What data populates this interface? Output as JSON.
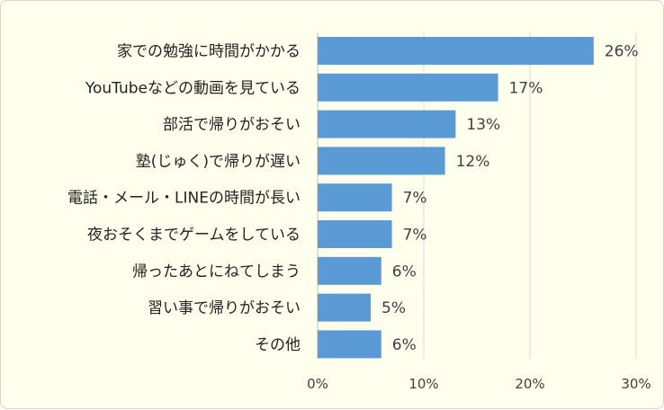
{
  "chart_data": {
    "type": "bar",
    "orientation": "horizontal",
    "categories": [
      "家での勉強に時間がかかる",
      "YouTubeなどの動画を見ている",
      "部活で帰りがおそい",
      "塾(じゅく)で帰りが遅い",
      "電話・メール・LINEの時間が長い",
      "夜おそくまでゲームをしている",
      "帰ったあとにねてしまう",
      "習い事で帰りがおそい",
      "その他"
    ],
    "values": [
      26,
      17,
      13,
      12,
      7,
      7,
      6,
      5,
      6
    ],
    "value_labels": [
      "26%",
      "17%",
      "13%",
      "12%",
      "7%",
      "7%",
      "6%",
      "5%",
      "6%"
    ],
    "xlim": [
      0,
      30
    ],
    "x_ticks": [
      0,
      10,
      20,
      30
    ],
    "x_tick_labels": [
      "0%",
      "10%",
      "20%",
      "30%"
    ],
    "grid": true,
    "legend": "none",
    "colors": {
      "bar": "#5B9BD5",
      "background": "#FFFFEE",
      "gridline": "#D9D9D9"
    }
  }
}
